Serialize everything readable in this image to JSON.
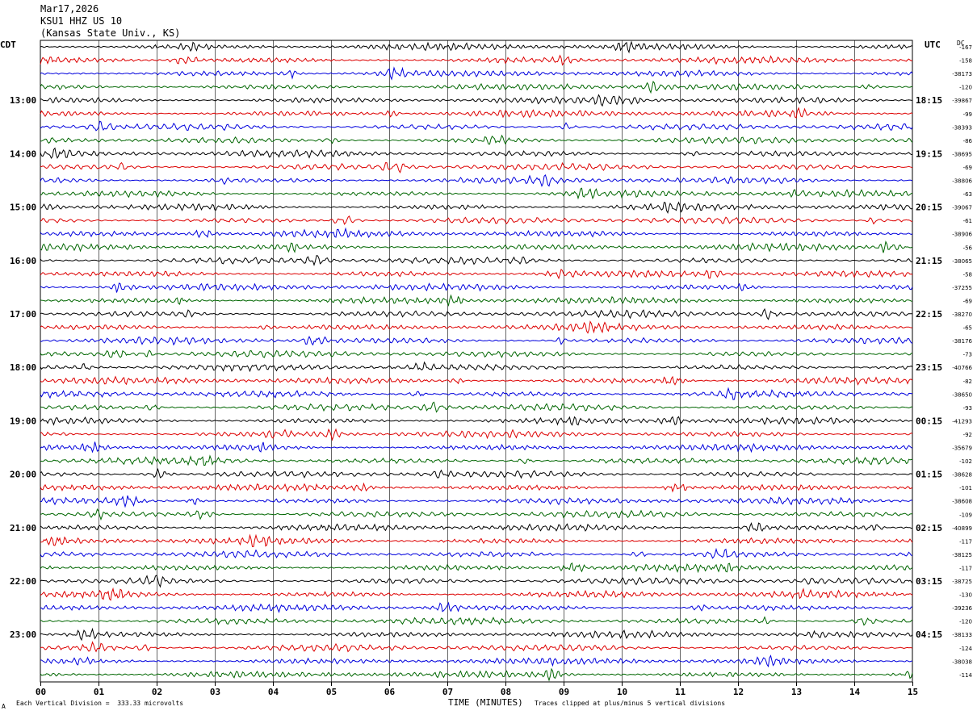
{
  "header": {
    "date": "Mar17,2026",
    "station": "KSU1 HHZ US 10",
    "location": "(Kansas State Univ., KS)"
  },
  "left_axis_title": "CDT",
  "right_axis_title": "UTC",
  "dc_label": "DC",
  "footer": {
    "scale_note": "Each Vertical Division =  333.33 microvolts",
    "clip_note": "Traces clipped at plus/minus 5 vertical divisions",
    "corner_mark": "A"
  },
  "chart_data": {
    "type": "line",
    "title": "",
    "xlabel": "TIME (MINUTES)",
    "ylabel": "",
    "xlim": [
      0,
      15
    ],
    "x_ticks": [
      "00",
      "01",
      "02",
      "03",
      "04",
      "05",
      "06",
      "07",
      "08",
      "09",
      "10",
      "11",
      "12",
      "13",
      "14",
      "15"
    ],
    "trace_colors": [
      "#000000",
      "#dd0000",
      "#0000dd",
      "#006600"
    ],
    "traces_per_hour": 4,
    "hours_left": [
      "13:00",
      "14:00",
      "15:00",
      "16:00",
      "17:00",
      "18:00",
      "19:00",
      "20:00",
      "21:00",
      "22:00",
      "23:00"
    ],
    "hours_right": [
      "18:15",
      "19:15",
      "20:15",
      "21:15",
      "22:15",
      "23:15",
      "00:15",
      "01:15",
      "02:15",
      "03:15",
      "04:15"
    ],
    "dc_offsets": [
      "-167",
      "-158",
      "-38173",
      "-120",
      "-39867",
      "-99",
      "-38393",
      "-86",
      "-38695",
      "-69",
      "-38806",
      "-63",
      "-39067",
      "-61",
      "-38906",
      "-56",
      "-38065",
      "-58",
      "-37255",
      "-69",
      "-38270",
      "-65",
      "-38176",
      "-73",
      "-40766",
      "-82",
      "-38650",
      "-93",
      "-41293",
      "-92",
      "-35679",
      "-102",
      "-38628",
      "-101",
      "-38608",
      "-109",
      "-40899",
      "-117",
      "-38125",
      "-117",
      "-38725",
      "-130",
      "-39236",
      "-120",
      "-38133",
      "-124",
      "-38038",
      "-114"
    ]
  }
}
